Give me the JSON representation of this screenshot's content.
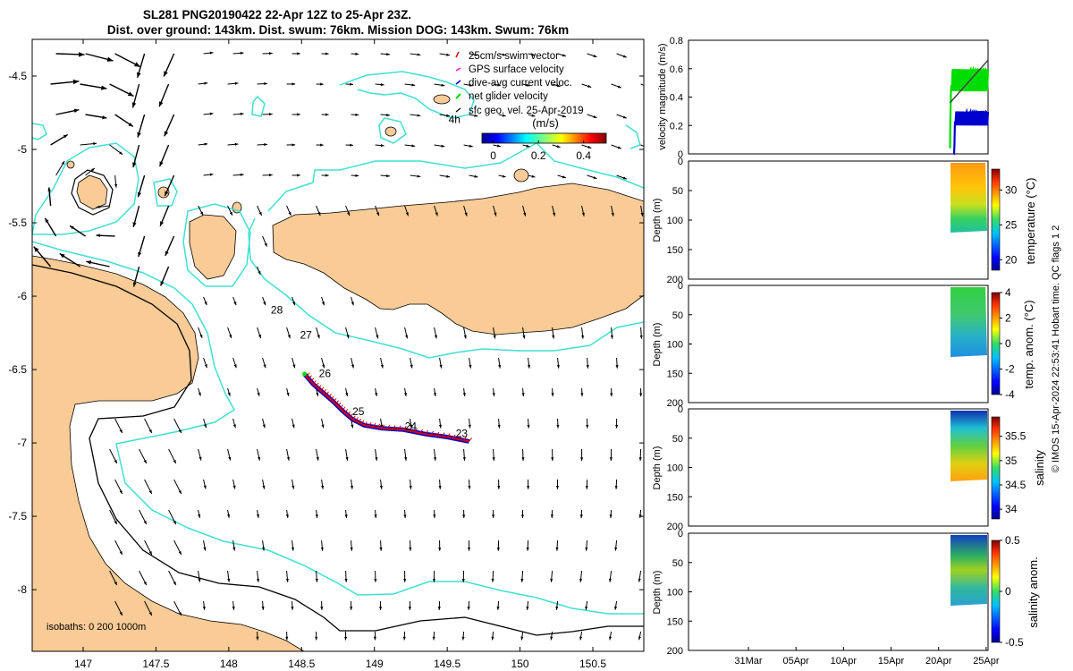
{
  "header": {
    "title_line1": "SL281 PNG20190422 22-Apr 12Z to 25-Apr 23Z.",
    "title_line2": "Dist. over ground: 143km. Dist. swum: 76km. Mission DOG: 143km. Swum: 76km"
  },
  "colors": {
    "land": "#f9cb96",
    "isobath_200": "#40e0d0",
    "isobath_line": "#000000",
    "track": "#d40000",
    "current_vector": "#0000cc",
    "swim_vector": "#d40000",
    "gps_vector": "#ff00ff",
    "net_vector": "#00dd00"
  },
  "chart_data": [
    {
      "type": "map",
      "name": "glider-track-map",
      "x_ticks": [
        "147",
        "147.5",
        "148",
        "148.5",
        "149",
        "149.5",
        "150",
        "150.5"
      ],
      "y_ticks": [
        "-4.5",
        "-5",
        "-5.5",
        "-6",
        "-6.5",
        "-7",
        "-7.5",
        "-8"
      ],
      "xlim": [
        146.65,
        150.85
      ],
      "ylim": [
        -8.42,
        -4.25
      ],
      "legend": {
        "items": [
          "25cm/s swim vector",
          "GPS surface velocity",
          "dive-avg current veloc.",
          "net glider velocity",
          "sfc geo. vel. 25-Apr-2019"
        ],
        "colorbar_unit": "(m/s)",
        "colorbar_ticks": [
          "0",
          "0.2",
          "0.4"
        ],
        "colorbar_range": [
          -0.05,
          0.5
        ]
      },
      "day_labels": [
        {
          "text": "28",
          "lon": 148.33,
          "lat": -6.12
        },
        {
          "text": "27",
          "lon": 148.53,
          "lat": -6.29
        },
        {
          "text": "26",
          "lon": 148.66,
          "lat": -6.55
        },
        {
          "text": "25",
          "lon": 148.89,
          "lat": -6.81
        },
        {
          "text": "24",
          "lon": 149.25,
          "lat": -6.91
        },
        {
          "text": "23",
          "lon": 149.6,
          "lat": -6.96
        },
        {
          "text": "4h",
          "lon": 149.55,
          "lat": -4.82
        }
      ],
      "track": [
        [
          149.65,
          -6.99
        ],
        [
          149.5,
          -6.96
        ],
        [
          149.35,
          -6.94
        ],
        [
          149.2,
          -6.91
        ],
        [
          149.05,
          -6.9
        ],
        [
          148.93,
          -6.88
        ],
        [
          148.85,
          -6.84
        ],
        [
          148.78,
          -6.78
        ],
        [
          148.72,
          -6.72
        ],
        [
          148.65,
          -6.66
        ],
        [
          148.58,
          -6.6
        ],
        [
          148.52,
          -6.53
        ]
      ],
      "isobath_label": "isobaths: 0   200  1000m"
    },
    {
      "type": "line",
      "name": "velocity-magnitude",
      "ylabel": "velocity magnitude (m/s)",
      "y_ticks": [
        "0",
        "0.2",
        "0.4",
        "0.6",
        "0.8"
      ],
      "ylim": [
        0,
        0.8
      ],
      "date_range_days": [
        24.7,
        56.2
      ],
      "series": [
        {
          "color": "#00dd00",
          "start_day": 52.2,
          "end_day": 56.2,
          "mean": 0.52,
          "amp": 0.08
        },
        {
          "color": "#0000cc",
          "start_day": 52.6,
          "end_day": 56.2,
          "mean": 0.25,
          "amp": 0.05
        },
        {
          "color": "#444444",
          "start_day": 52.2,
          "end_day": 56.2,
          "start": 0.36,
          "end": 0.66
        }
      ]
    },
    {
      "type": "heatmap",
      "name": "temperature",
      "ylabel": "Depth (m)",
      "y_ticks": [
        "0",
        "50",
        "100",
        "150",
        "200"
      ],
      "colorbar_label": "temperature (°C)",
      "colorbar_ticks": [
        "20",
        "25",
        "30"
      ],
      "colorbar_range": [
        18.5,
        33
      ]
    },
    {
      "type": "heatmap",
      "name": "temp-anomaly",
      "ylabel": "Depth (m)",
      "y_ticks": [
        "0",
        "50",
        "100",
        "150",
        "200"
      ],
      "colorbar_label": "temp. anom. (°C)",
      "colorbar_ticks": [
        "-4",
        "-2",
        "0",
        "2",
        "4"
      ],
      "colorbar_range": [
        -4,
        4
      ]
    },
    {
      "type": "heatmap",
      "name": "salinity",
      "ylabel": "Depth (m)",
      "y_ticks": [
        "0",
        "50",
        "100",
        "150",
        "200"
      ],
      "colorbar_label": "salinity",
      "colorbar_ticks": [
        "34",
        "34.5",
        "35",
        "35.5"
      ],
      "colorbar_range": [
        33.8,
        35.9
      ]
    },
    {
      "type": "heatmap",
      "name": "salinity-anomaly",
      "ylabel": "Depth (m)",
      "y_ticks": [
        "0",
        "50",
        "100",
        "150",
        "200"
      ],
      "colorbar_label": "salinity anom.",
      "colorbar_ticks": [
        "-0.5",
        "0",
        "0.5"
      ],
      "colorbar_range": [
        -0.5,
        0.5
      ],
      "x_ticks": [
        "31Mar",
        "05Apr",
        "10Apr",
        "15Apr",
        "20Apr",
        "25Apr"
      ]
    }
  ],
  "side_note": "© IMOS 15-Apr-2024 22:53:41 Hobart time. QC flags 1  2"
}
